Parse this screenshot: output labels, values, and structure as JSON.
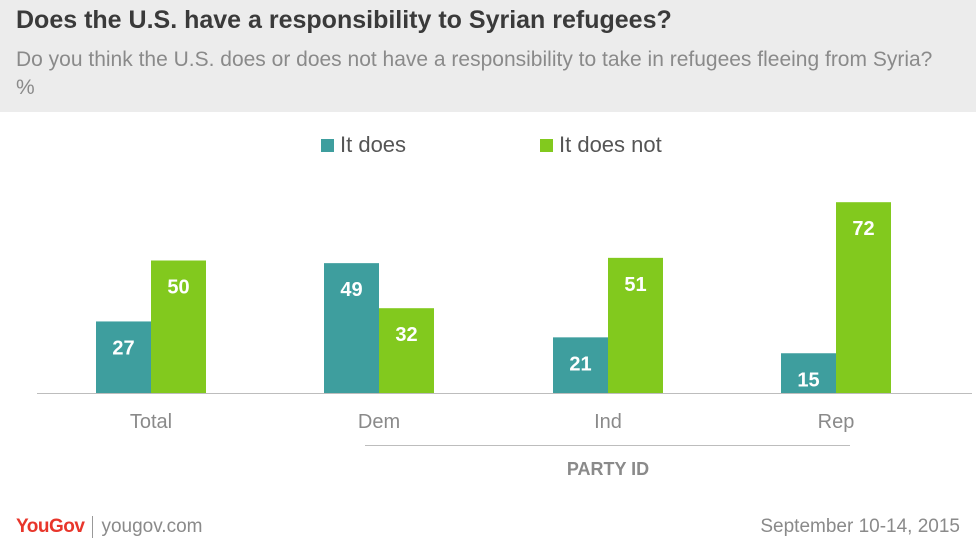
{
  "title": "Does the U.S. have a responsibility  to Syrian refugees?",
  "subtitle": "Do you think the U.S. does or does not have a responsibility to take in refugees fleeing from Syria? %",
  "footer": {
    "brand": "YouGov",
    "site": "yougov.com",
    "date": "September 10-14, 2015"
  },
  "chart_data": {
    "type": "bar",
    "categories": [
      "Total",
      "Dem",
      "Ind",
      "Rep"
    ],
    "series": [
      {
        "name": "It does",
        "values": [
          27,
          49,
          21,
          15
        ],
        "color": "#3e9e9e"
      },
      {
        "name": "It does not",
        "values": [
          50,
          32,
          51,
          72
        ],
        "color": "#82c91e"
      }
    ],
    "group_label": "PARTY ID",
    "ylim": [
      0,
      80
    ],
    "legend_position": "top"
  }
}
